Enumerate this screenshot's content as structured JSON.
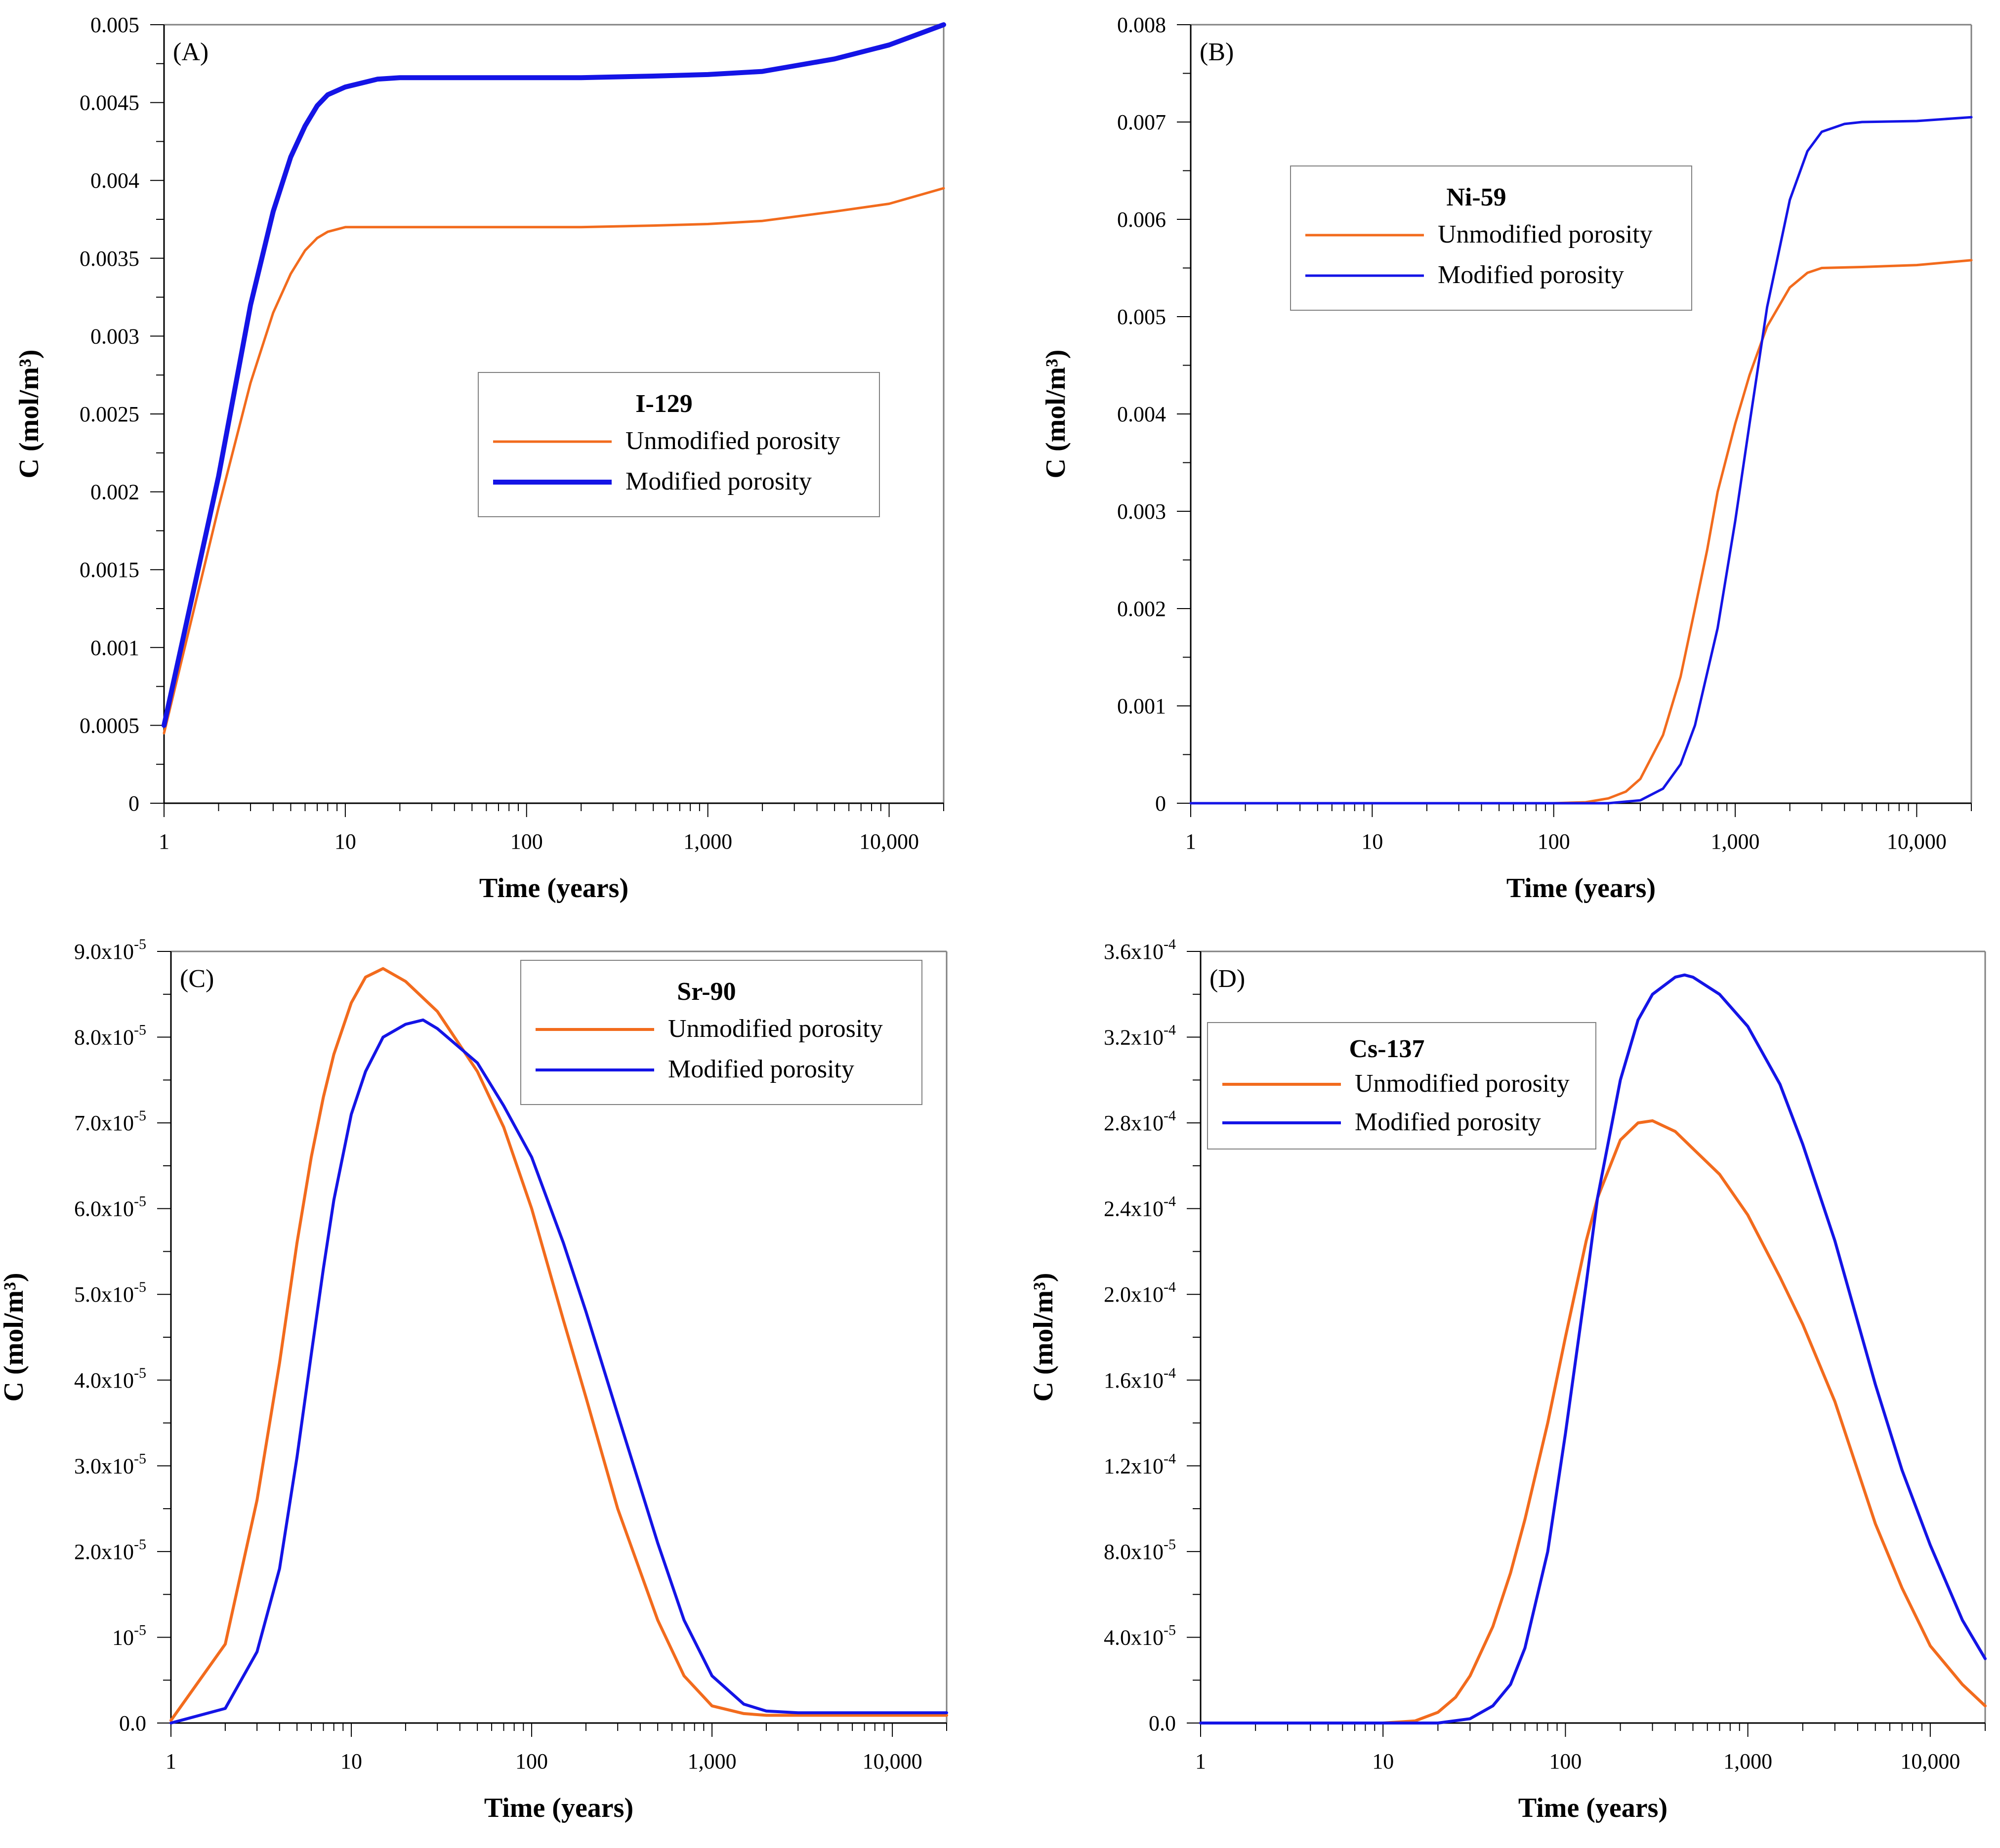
{
  "colors": {
    "unmodified": "#f26b1d",
    "modified": "#1414e6",
    "axis": "#000000",
    "frame": "#808080"
  },
  "chart_data": [
    {
      "id": "A",
      "type": "line",
      "panel_label": "(A)",
      "legend_title": "I-129",
      "legend_position": "center-right",
      "xscale": "log",
      "xlim": [
        1,
        20000
      ],
      "xlabel": "Time (years)",
      "ylabel": "C (mol/m³)",
      "ylim": [
        0,
        0.005
      ],
      "x_ticks": [
        {
          "v": 1,
          "label": "1"
        },
        {
          "v": 10,
          "label": "10"
        },
        {
          "v": 100,
          "label": "100"
        },
        {
          "v": 1000,
          "label": "1,000"
        },
        {
          "v": 10000,
          "label": "10,000"
        }
      ],
      "y_ticks": [
        {
          "v": 0,
          "label": "0"
        },
        {
          "v": 0.0005,
          "label": "0.0005"
        },
        {
          "v": 0.001,
          "label": "0.001"
        },
        {
          "v": 0.0015,
          "label": "0.0015"
        },
        {
          "v": 0.002,
          "label": "0.002"
        },
        {
          "v": 0.0025,
          "label": "0.0025"
        },
        {
          "v": 0.003,
          "label": "0.003"
        },
        {
          "v": 0.0035,
          "label": "0.0035"
        },
        {
          "v": 0.004,
          "label": "0.004"
        },
        {
          "v": 0.0045,
          "label": "0.0045"
        },
        {
          "v": 0.005,
          "label": "0.005"
        }
      ],
      "series": [
        {
          "name": "Unmodified porosity",
          "key": "unmodified",
          "width": 5,
          "x": [
            1,
            2,
            3,
            4,
            5,
            6,
            7,
            8,
            10,
            15,
            20,
            50,
            100,
            200,
            500,
            1000,
            2000,
            5000,
            10000,
            20000
          ],
          "y": [
            0.00045,
            0.0019,
            0.0027,
            0.00315,
            0.0034,
            0.00355,
            0.00363,
            0.00367,
            0.0037,
            0.0037,
            0.0037,
            0.0037,
            0.0037,
            0.0037,
            0.00371,
            0.00372,
            0.00374,
            0.0038,
            0.00385,
            0.00395
          ]
        },
        {
          "name": "Modified porosity",
          "key": "modified",
          "width": 10,
          "x": [
            1,
            2,
            3,
            4,
            5,
            6,
            7,
            8,
            10,
            15,
            20,
            50,
            100,
            200,
            500,
            1000,
            2000,
            5000,
            10000,
            20000
          ],
          "y": [
            0.0005,
            0.0021,
            0.0032,
            0.0038,
            0.00415,
            0.00435,
            0.00448,
            0.00455,
            0.0046,
            0.00465,
            0.00466,
            0.00466,
            0.00466,
            0.00466,
            0.00467,
            0.00468,
            0.0047,
            0.00478,
            0.00487,
            0.005
          ]
        }
      ]
    },
    {
      "id": "B",
      "type": "line",
      "panel_label": "(B)",
      "legend_title": "Ni-59",
      "legend_position": "upper-left",
      "xscale": "log",
      "xlim": [
        1,
        20000
      ],
      "xlabel": "Time (years)",
      "ylabel": "C (mol/m³)",
      "ylim": [
        0,
        0.008
      ],
      "x_ticks": [
        {
          "v": 1,
          "label": "1"
        },
        {
          "v": 10,
          "label": "10"
        },
        {
          "v": 100,
          "label": "100"
        },
        {
          "v": 1000,
          "label": "1,000"
        },
        {
          "v": 10000,
          "label": "10,000"
        }
      ],
      "y_ticks": [
        {
          "v": 0,
          "label": "0"
        },
        {
          "v": 0.001,
          "label": "0.001"
        },
        {
          "v": 0.002,
          "label": "0.002"
        },
        {
          "v": 0.003,
          "label": "0.003"
        },
        {
          "v": 0.004,
          "label": "0.004"
        },
        {
          "v": 0.005,
          "label": "0.005"
        },
        {
          "v": 0.006,
          "label": "0.006"
        },
        {
          "v": 0.007,
          "label": "0.007"
        },
        {
          "v": 0.008,
          "label": "0.008"
        }
      ],
      "series": [
        {
          "name": "Unmodified porosity",
          "key": "unmodified",
          "width": 5,
          "x": [
            1,
            100,
            150,
            200,
            250,
            300,
            400,
            500,
            600,
            700,
            800,
            1000,
            1200,
            1500,
            2000,
            2500,
            3000,
            5000,
            10000,
            20000
          ],
          "y": [
            0,
            0,
            1e-05,
            5e-05,
            0.00012,
            0.00025,
            0.0007,
            0.0013,
            0.002,
            0.0026,
            0.0032,
            0.0039,
            0.0044,
            0.0049,
            0.0053,
            0.00545,
            0.0055,
            0.00551,
            0.00553,
            0.00558
          ]
        },
        {
          "name": "Modified porosity",
          "key": "modified",
          "width": 5,
          "x": [
            1,
            200,
            300,
            400,
            500,
            600,
            800,
            1000,
            1200,
            1500,
            2000,
            2500,
            3000,
            4000,
            5000,
            10000,
            20000
          ],
          "y": [
            0,
            0,
            3e-05,
            0.00015,
            0.0004,
            0.0008,
            0.0018,
            0.0029,
            0.0039,
            0.0051,
            0.0062,
            0.0067,
            0.0069,
            0.00698,
            0.007,
            0.00701,
            0.00705
          ]
        }
      ]
    },
    {
      "id": "C",
      "type": "line",
      "panel_label": "(C)",
      "legend_title": "Sr-90",
      "legend_position": "top-right",
      "xscale": "log",
      "xlim": [
        1,
        20000
      ],
      "xlabel": "Time (years)",
      "ylabel": "C (mol/m³)",
      "ylim": [
        0,
        9e-05
      ],
      "x_ticks": [
        {
          "v": 1,
          "label": "1"
        },
        {
          "v": 10,
          "label": "10"
        },
        {
          "v": 100,
          "label": "100"
        },
        {
          "v": 1000,
          "label": "1,000"
        },
        {
          "v": 10000,
          "label": "10,000"
        }
      ],
      "y_ticks": [
        {
          "v": 0,
          "label": "0.0",
          "m": "",
          "e": ""
        },
        {
          "v": 1e-05,
          "label": "",
          "m": "10",
          "e": "-5"
        },
        {
          "v": 2e-05,
          "label": "",
          "m": "2.0x10",
          "e": "-5"
        },
        {
          "v": 3e-05,
          "label": "",
          "m": "3.0x10",
          "e": "-5"
        },
        {
          "v": 4e-05,
          "label": "",
          "m": "4.0x10",
          "e": "-5"
        },
        {
          "v": 5e-05,
          "label": "",
          "m": "5.0x10",
          "e": "-5"
        },
        {
          "v": 6e-05,
          "label": "",
          "m": "6.0x10",
          "e": "-5"
        },
        {
          "v": 7e-05,
          "label": "",
          "m": "7.0x10",
          "e": "-5"
        },
        {
          "v": 8e-05,
          "label": "",
          "m": "8.0x10",
          "e": "-5"
        },
        {
          "v": 9e-05,
          "label": "",
          "m": "9.0x10",
          "e": "-5"
        }
      ],
      "series": [
        {
          "name": "Unmodified porosity",
          "key": "unmodified",
          "width": 6,
          "x": [
            1,
            2,
            3,
            4,
            5,
            6,
            7,
            8,
            10,
            12,
            15,
            20,
            30,
            50,
            70,
            100,
            150,
            200,
            300,
            500,
            700,
            1000,
            1500,
            2000,
            3000,
            5000,
            10000,
            20000
          ],
          "y": [
            3e-07,
            9.2e-06,
            2.6e-05,
            4.2e-05,
            5.6e-05,
            6.6e-05,
            7.3e-05,
            7.8e-05,
            8.4e-05,
            8.7e-05,
            8.8e-05,
            8.65e-05,
            8.3e-05,
            7.6e-05,
            6.95e-05,
            6e-05,
            4.7e-05,
            3.8e-05,
            2.5e-05,
            1.2e-05,
            5.5e-06,
            2e-06,
            1.1e-06,
            9e-07,
            9e-07,
            9e-07,
            9e-07,
            9e-07
          ]
        },
        {
          "name": "Modified porosity",
          "key": "modified",
          "width": 6,
          "x": [
            1,
            2,
            3,
            4,
            5,
            6,
            7,
            8,
            10,
            12,
            15,
            20,
            25,
            30,
            50,
            70,
            100,
            150,
            200,
            300,
            500,
            700,
            1000,
            1500,
            2000,
            3000,
            5000,
            10000,
            20000
          ],
          "y": [
            0,
            1.7e-06,
            8.3e-06,
            1.8e-05,
            3.1e-05,
            4.3e-05,
            5.3e-05,
            6.1e-05,
            7.1e-05,
            7.6e-05,
            8e-05,
            8.15e-05,
            8.2e-05,
            8.1e-05,
            7.7e-05,
            7.2e-05,
            6.6e-05,
            5.6e-05,
            4.8e-05,
            3.6e-05,
            2.1e-05,
            1.2e-05,
            5.5e-06,
            2.2e-06,
            1.4e-06,
            1.2e-06,
            1.2e-06,
            1.2e-06,
            1.2e-06
          ]
        }
      ]
    },
    {
      "id": "D",
      "type": "line",
      "panel_label": "(D)",
      "legend_title": "Cs-137",
      "legend_position": "upper-left",
      "xscale": "log",
      "xlim": [
        1,
        20000
      ],
      "xlabel": "Time (years)",
      "ylabel": "C (mol/m³)",
      "ylim": [
        0,
        0.00036
      ],
      "x_ticks": [
        {
          "v": 1,
          "label": "1"
        },
        {
          "v": 10,
          "label": "10"
        },
        {
          "v": 100,
          "label": "100"
        },
        {
          "v": 1000,
          "label": "1,000"
        },
        {
          "v": 10000,
          "label": "10,000"
        }
      ],
      "y_ticks": [
        {
          "v": 0,
          "label": "0.0",
          "m": "",
          "e": ""
        },
        {
          "v": 4e-05,
          "label": "",
          "m": "4.0x10",
          "e": "-5"
        },
        {
          "v": 8e-05,
          "label": "",
          "m": "8.0x10",
          "e": "-5"
        },
        {
          "v": 0.00012,
          "label": "",
          "m": "1.2x10",
          "e": "-4"
        },
        {
          "v": 0.00016,
          "label": "",
          "m": "1.6x10",
          "e": "-4"
        },
        {
          "v": 0.0002,
          "label": "",
          "m": "2.0x10",
          "e": "-4"
        },
        {
          "v": 0.00024,
          "label": "",
          "m": "2.4x10",
          "e": "-4"
        },
        {
          "v": 0.00028,
          "label": "",
          "m": "2.8x10",
          "e": "-4"
        },
        {
          "v": 0.00032,
          "label": "",
          "m": "3.2x10",
          "e": "-4"
        },
        {
          "v": 0.00036,
          "label": "",
          "m": "3.6x10",
          "e": "-4"
        }
      ],
      "series": [
        {
          "name": "Unmodified porosity",
          "key": "unmodified",
          "width": 6,
          "x": [
            1,
            10,
            15,
            20,
            25,
            30,
            40,
            50,
            60,
            80,
            100,
            130,
            150,
            200,
            250,
            300,
            400,
            500,
            700,
            1000,
            1500,
            2000,
            3000,
            5000,
            7000,
            10000,
            15000,
            20000
          ],
          "y": [
            0,
            0,
            1e-06,
            5e-06,
            1.2e-05,
            2.2e-05,
            4.5e-05,
            7e-05,
            9.5e-05,
            0.00014,
            0.00018,
            0.000225,
            0.000245,
            0.000272,
            0.00028,
            0.000281,
            0.000276,
            0.000268,
            0.000256,
            0.000237,
            0.000208,
            0.000186,
            0.00015,
            9.3e-05,
            6.3e-05,
            3.6e-05,
            1.8e-05,
            8e-06
          ]
        },
        {
          "name": "Modified porosity",
          "key": "modified",
          "width": 6,
          "x": [
            1,
            20,
            30,
            40,
            50,
            60,
            80,
            100,
            130,
            150,
            200,
            250,
            300,
            400,
            450,
            500,
            700,
            1000,
            1500,
            2000,
            3000,
            5000,
            7000,
            10000,
            15000,
            20000
          ],
          "y": [
            0,
            0,
            2e-06,
            8e-06,
            1.8e-05,
            3.5e-05,
            8e-05,
            0.000135,
            0.000205,
            0.000245,
            0.0003,
            0.000328,
            0.00034,
            0.000348,
            0.000349,
            0.000348,
            0.00034,
            0.000325,
            0.000298,
            0.00027,
            0.000225,
            0.000158,
            0.000118,
            8.3e-05,
            4.8e-05,
            3e-05
          ]
        }
      ]
    }
  ]
}
